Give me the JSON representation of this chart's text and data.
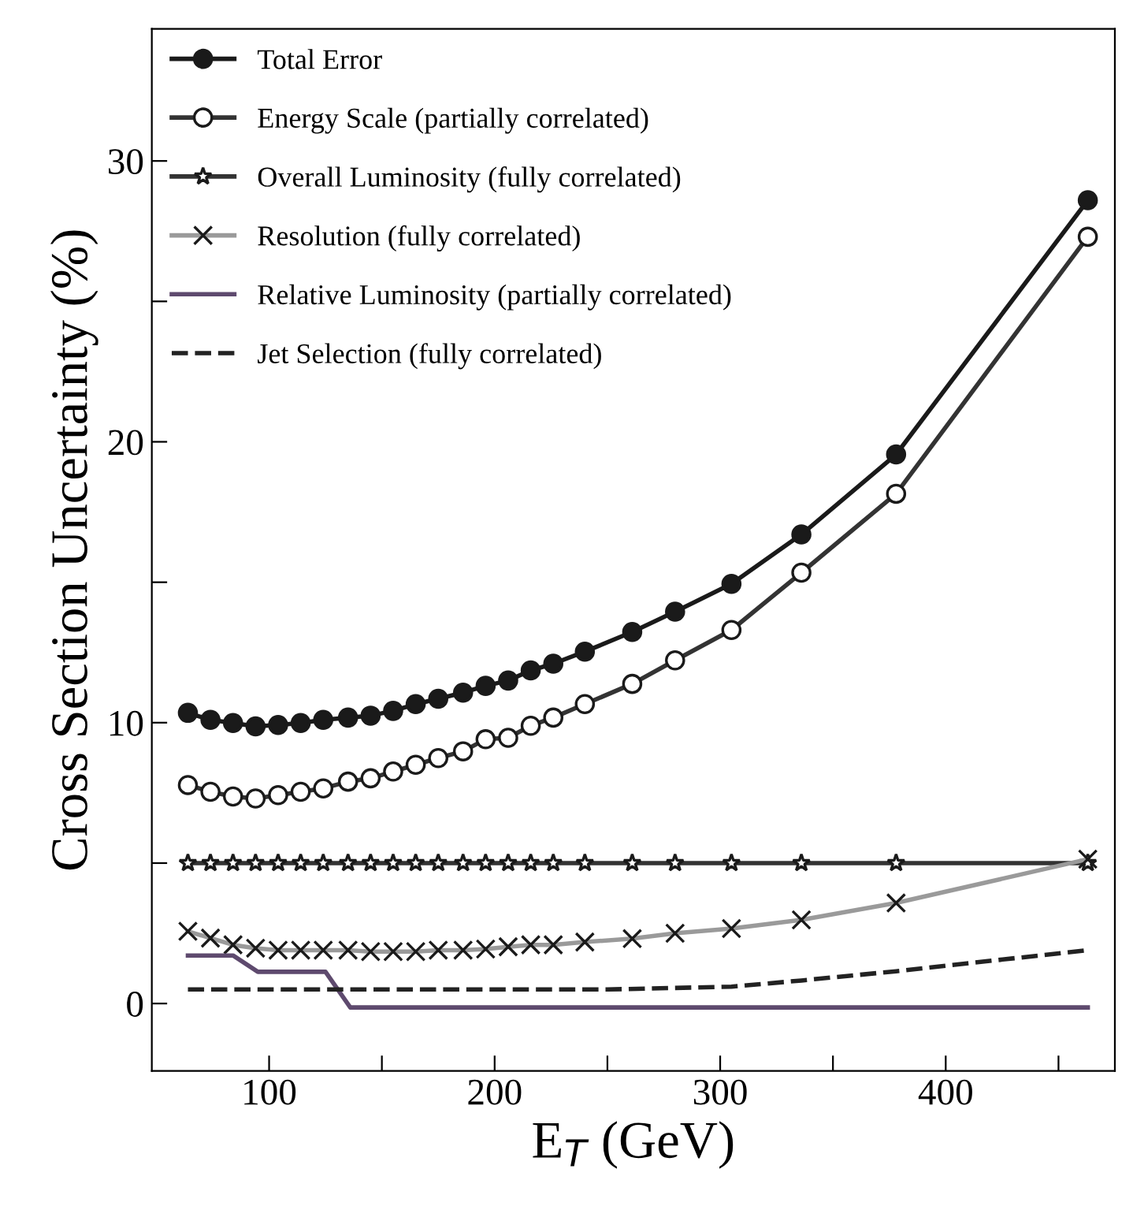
{
  "chart_data": {
    "type": "line",
    "xlabel": "E$_{T}$ (GeV)",
    "ylabel": "Cross Section Uncertainty (%)",
    "x": [
      64,
      74,
      84,
      94,
      104,
      114,
      124,
      135,
      145,
      155,
      165,
      175,
      186,
      196,
      206,
      216,
      226,
      240,
      261,
      280,
      305,
      336,
      378,
      463
    ],
    "series": [
      {
        "name": "Total Error",
        "color": "#1a1a1a",
        "marker": "circle",
        "values": [
          10.35,
          10.1,
          9.99,
          9.87,
          9.92,
          9.99,
          10.1,
          10.18,
          10.25,
          10.42,
          10.66,
          10.85,
          11.07,
          11.31,
          11.5,
          11.86,
          12.1,
          12.53,
          13.23,
          13.95,
          14.94,
          16.7,
          19.55,
          28.6
        ]
      },
      {
        "name": "Energy Scale (partially correlated)",
        "color": "#333333",
        "marker": "circle",
        "values": [
          7.78,
          7.54,
          7.37,
          7.3,
          7.42,
          7.54,
          7.66,
          7.9,
          8.02,
          8.26,
          8.5,
          8.74,
          8.98,
          9.41,
          9.46,
          9.89,
          10.18,
          10.66,
          11.38,
          12.22,
          13.3,
          15.34,
          18.15,
          27.3
        ]
      },
      {
        "name": "Overall Luminosity (fully correlated)",
        "color": "#333333",
        "marker": "star",
        "values": [
          5,
          5,
          5,
          5,
          5,
          5,
          5,
          5,
          5,
          5,
          5,
          5,
          5,
          5,
          5,
          5,
          5,
          5,
          5,
          5,
          5,
          5,
          5,
          5
        ]
      },
      {
        "name": "Resolution (fully correlated)",
        "color": "#9a9a9a",
        "marker": "cross",
        "values": [
          2.57,
          2.33,
          2.09,
          1.97,
          1.9,
          1.9,
          1.9,
          1.9,
          1.85,
          1.85,
          1.85,
          1.9,
          1.9,
          1.94,
          2.02,
          2.09,
          2.09,
          2.19,
          2.31,
          2.5,
          2.67,
          2.98,
          3.58,
          5.14
        ]
      },
      {
        "name": "Relative Luminosity (partially correlated)",
        "color": "#5e4a6e",
        "marker": "none",
        "x": [
          64,
          84,
          95,
          125,
          136,
          463
        ],
        "values": [
          1.71,
          1.71,
          1.13,
          1.13,
          -0.14,
          -0.14
        ]
      },
      {
        "name": "Jet Selection (fully correlated)",
        "color": "#222222",
        "marker": "none",
        "line_style": "dashed",
        "x": [
          64,
          250,
          305,
          336,
          378,
          463
        ],
        "values": [
          0.5,
          0.5,
          0.6,
          0.82,
          1.15,
          1.9
        ]
      }
    ],
    "xlim": [
      48,
      475
    ],
    "ylim": [
      -2.4,
      34.7
    ],
    "xticks": [
      100,
      {
        "value": 150,
        "label": null
      },
      200,
      {
        "value": 250,
        "label": null
      },
      300,
      {
        "value": 350,
        "label": null
      },
      400,
      {
        "value": 450,
        "label": null
      }
    ],
    "yticks": [
      0,
      {
        "value": 5,
        "label": null
      },
      10,
      {
        "value": 15,
        "label": null
      },
      20,
      {
        "value": 25,
        "label": null
      },
      30
    ],
    "grid": false,
    "legend": "top left"
  }
}
